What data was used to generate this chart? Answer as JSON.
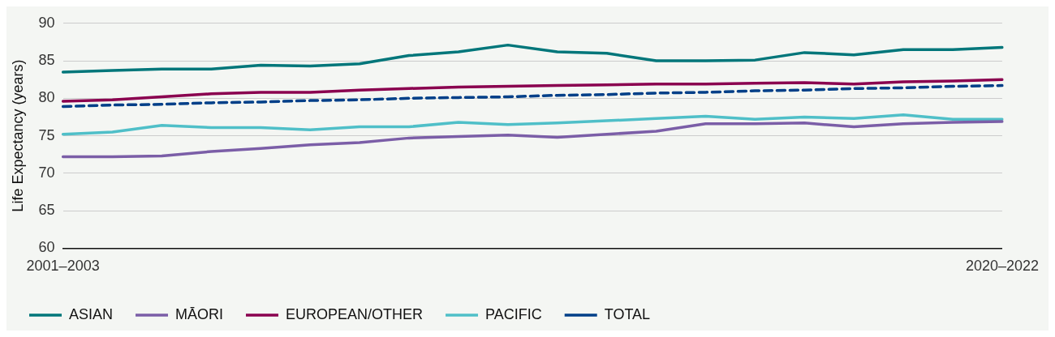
{
  "chart_data": {
    "type": "line",
    "ylabel": "Life Expectancy (years)",
    "categories": [
      "2001–2003",
      null,
      null,
      null,
      null,
      null,
      null,
      null,
      null,
      null,
      null,
      null,
      null,
      null,
      null,
      null,
      null,
      null,
      null,
      "2020–2022"
    ],
    "series": [
      {
        "name": "ASIAN",
        "color": "#00767a",
        "values": [
          83.5,
          83.7,
          83.9,
          83.9,
          84.4,
          84.3,
          84.6,
          85.7,
          86.2,
          87.1,
          86.2,
          86.0,
          85.0,
          85.0,
          85.1,
          86.1,
          85.8,
          86.5,
          86.5,
          86.8
        ]
      },
      {
        "name": "MĀORI",
        "color": "#7b5ea7",
        "values": [
          72.2,
          72.2,
          72.3,
          72.9,
          73.3,
          73.8,
          74.1,
          74.7,
          74.9,
          75.1,
          74.8,
          75.2,
          75.6,
          76.6,
          76.6,
          76.7,
          76.2,
          76.6,
          76.8,
          76.9
        ]
      },
      {
        "name": "EUROPEAN/OTHER",
        "color": "#8a004f",
        "values": [
          79.6,
          79.8,
          80.2,
          80.6,
          80.8,
          80.8,
          81.1,
          81.3,
          81.5,
          81.6,
          81.7,
          81.8,
          81.9,
          81.9,
          82.0,
          82.1,
          81.9,
          82.2,
          82.3,
          82.5
        ]
      },
      {
        "name": "PACIFIC",
        "color": "#4fbfc8",
        "values": [
          75.2,
          75.5,
          76.4,
          76.1,
          76.1,
          75.8,
          76.2,
          76.2,
          76.8,
          76.5,
          76.7,
          77.0,
          77.3,
          77.6,
          77.2,
          77.5,
          77.3,
          77.8,
          77.2,
          77.2
        ]
      },
      {
        "name": "TOTAL",
        "color": "#003f88",
        "line_style": "dashed",
        "values": [
          78.9,
          79.1,
          79.2,
          79.4,
          79.5,
          79.7,
          79.8,
          80.0,
          80.1,
          80.2,
          80.4,
          80.5,
          80.7,
          80.8,
          81.0,
          81.1,
          81.3,
          81.4,
          81.6,
          81.7
        ]
      }
    ],
    "ylim": [
      60,
      90
    ],
    "yticks": [
      60,
      65,
      70,
      75,
      80,
      85,
      90
    ],
    "grid": "y",
    "legend": "bottom",
    "marker": "none",
    "line_style": "solid"
  }
}
